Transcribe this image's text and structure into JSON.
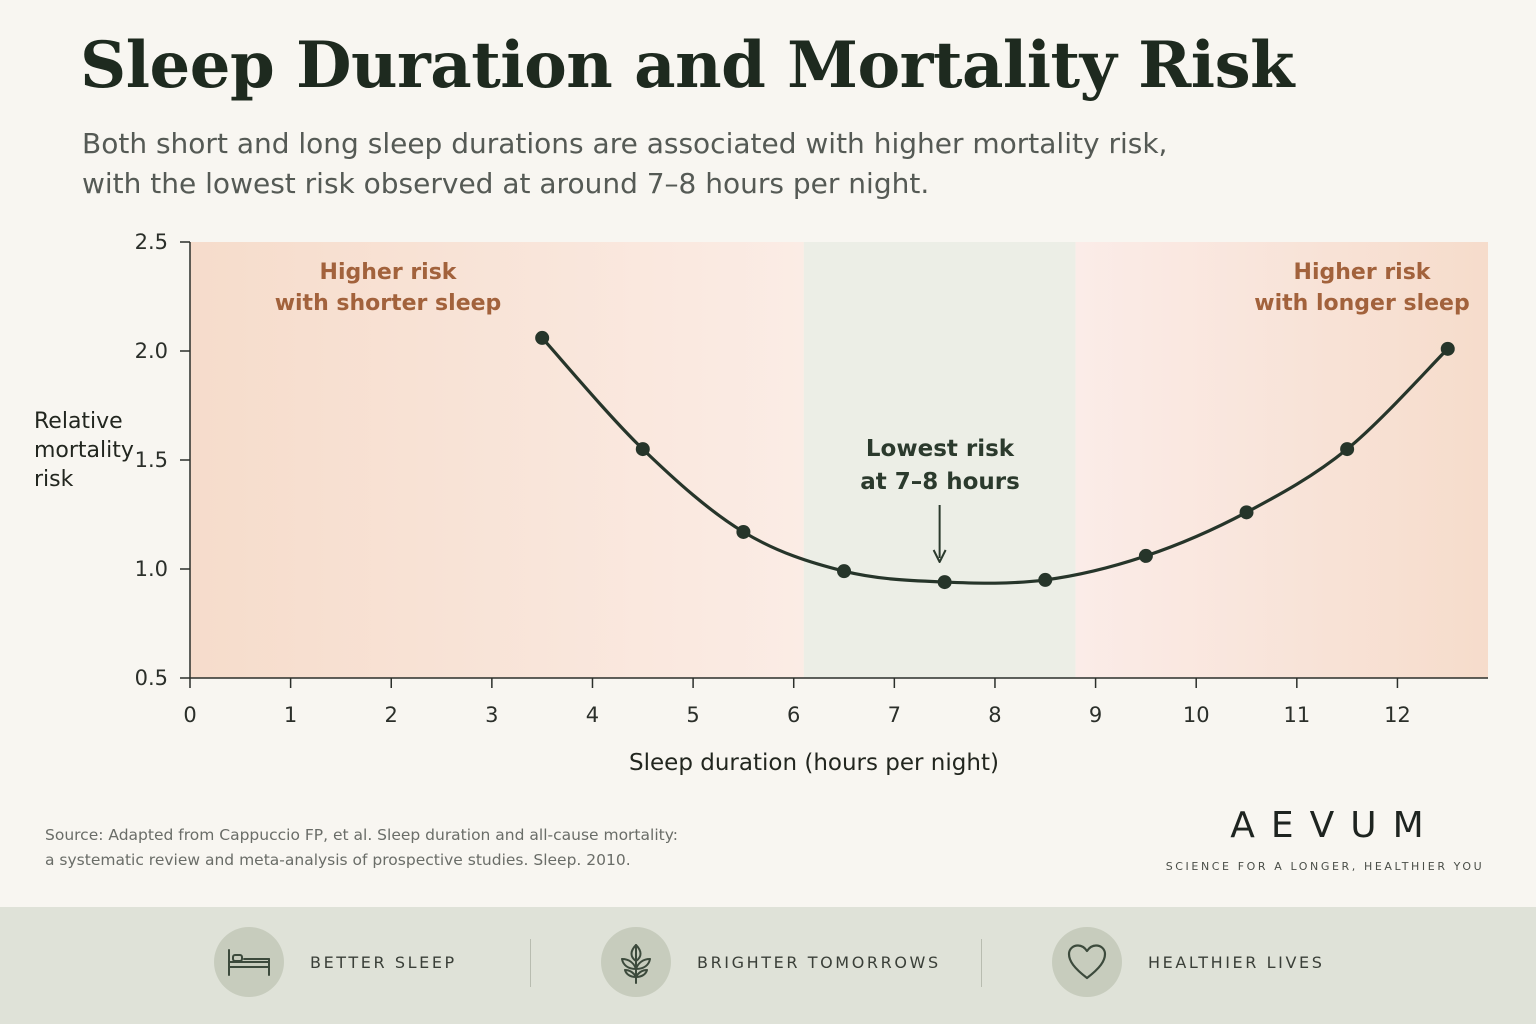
{
  "header": {
    "title": "Sleep Duration and Mortality Risk",
    "subtitle_lines": [
      "Both short and long sleep durations are associated with higher mortality risk,",
      "with the lowest risk observed at around 7–8 hours per night."
    ]
  },
  "chart_data": {
    "type": "line",
    "xlabel": "Sleep duration (hours per night)",
    "ylabel_lines": [
      "Relative",
      "mortality",
      "risk"
    ],
    "xlim": [
      0,
      12.9
    ],
    "ylim": [
      0.5,
      2.5
    ],
    "x_ticks": [
      0,
      1,
      2,
      3,
      4,
      5,
      6,
      7,
      8,
      9,
      10,
      11,
      12
    ],
    "y_ticks": [
      "0.5",
      "1.0",
      "1.5",
      "2.0",
      "2.5"
    ],
    "series": [
      {
        "x": [
          3.5,
          4.5,
          5.5,
          6.5,
          7.5,
          8.5,
          9.5,
          10.5,
          11.5,
          12.5
        ],
        "y": [
          2.06,
          1.55,
          1.17,
          0.99,
          0.94,
          0.95,
          1.06,
          1.26,
          1.55,
          2.01
        ],
        "color": "#26352a"
      }
    ],
    "lowest_risk_band": [
      6.1,
      8.8
    ],
    "annotations": {
      "short_sleep": [
        "Higher risk",
        "with shorter sleep"
      ],
      "long_sleep": [
        "Higher risk",
        "with longer sleep"
      ],
      "lowest": [
        "Lowest risk",
        "at 7–8 hours"
      ],
      "lowest_arrow_x": 7.45
    },
    "colors": {
      "risk_zone": "#f6dccb",
      "optimal_zone": "#eceee6",
      "annotation_risk": "#a2623c",
      "annotation_lowest": "#2b3a2d",
      "line": "#26352a"
    },
    "grid": false
  },
  "source": {
    "lines": [
      "Source: Adapted from Cappuccio FP, et al. Sleep duration and all-cause mortality:",
      "a systematic review and meta-analysis of prospective studies. Sleep. 2010."
    ]
  },
  "brand": {
    "logo": "AEVUM",
    "tagline": "SCIENCE FOR A LONGER, HEALTHIER YOU"
  },
  "footer": {
    "features": [
      {
        "label": "BETTER SLEEP",
        "icon": "bed-icon"
      },
      {
        "label": "BRIGHTER TOMORROWS",
        "icon": "sprout-icon"
      },
      {
        "label": "HEALTHIER LIVES",
        "icon": "heart-icon"
      }
    ]
  }
}
